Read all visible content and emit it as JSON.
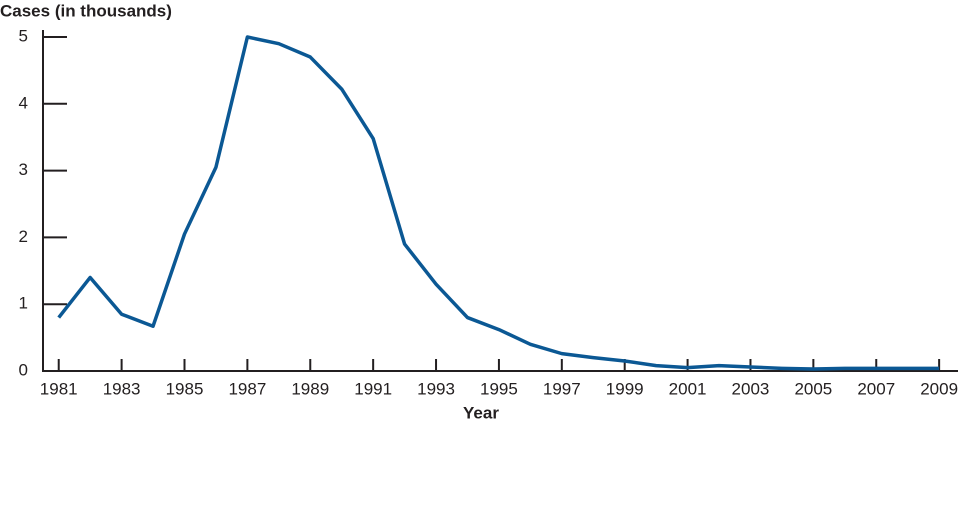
{
  "chart_data": {
    "type": "line",
    "y_label": "Cases (in thousands)",
    "x_label": "Year",
    "x": [
      1981,
      1982,
      1983,
      1984,
      1985,
      1986,
      1987,
      1988,
      1989,
      1990,
      1991,
      1992,
      1993,
      1994,
      1995,
      1996,
      1997,
      1998,
      1999,
      2000,
      2001,
      2002,
      2003,
      2004,
      2005,
      2006,
      2007,
      2008,
      2009
    ],
    "values": [
      0.8,
      1.4,
      0.85,
      0.67,
      2.05,
      3.05,
      5.0,
      4.9,
      4.7,
      4.22,
      3.48,
      1.9,
      1.3,
      0.8,
      0.62,
      0.4,
      0.26,
      0.2,
      0.15,
      0.08,
      0.05,
      0.08,
      0.06,
      0.04,
      0.03,
      0.04,
      0.04,
      0.04,
      0.04
    ],
    "color": "#0b5894",
    "xlim": [
      1980.5,
      2009.6
    ],
    "xticks": [
      1981,
      1983,
      1985,
      1987,
      1989,
      1991,
      1993,
      1995,
      1997,
      1999,
      2001,
      2003,
      2005,
      2007,
      2009
    ],
    "ylim": [
      0,
      5
    ],
    "yticks": [
      0,
      1,
      2,
      3,
      4,
      5
    ],
    "grid": false
  }
}
